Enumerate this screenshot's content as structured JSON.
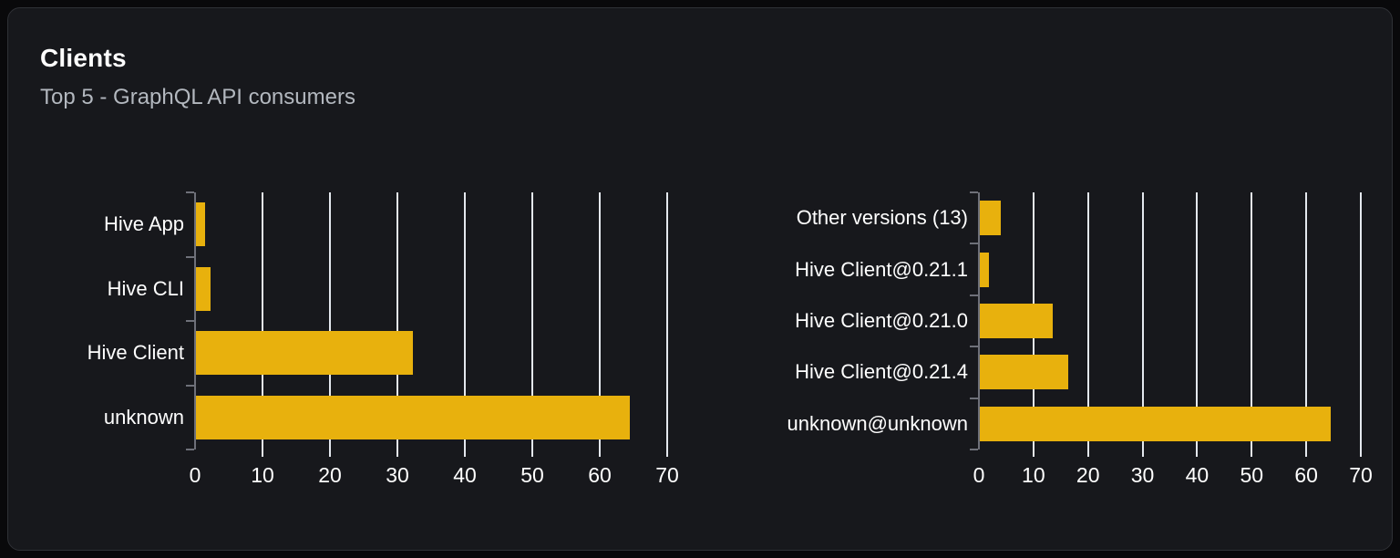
{
  "card": {
    "title": "Clients",
    "subtitle": "Top 5 - GraphQL API consumers"
  },
  "colors": {
    "page_background": "#09090b",
    "card_background": "#17181c",
    "card_border": "#2f3136",
    "bar_fill": "#e8b10d",
    "grid_line": "#e4e8ee",
    "axis_line": "#6e7079",
    "title_text": "#ffffff",
    "subtitle_text": "#b3b8bf",
    "tick_label_text": "#ffffff"
  },
  "chart_data": [
    {
      "type": "bar",
      "orientation": "horizontal",
      "title": "",
      "categories": [
        "Hive App",
        "Hive CLI",
        "Hive Client",
        "unknown"
      ],
      "values": [
        1.4,
        2.1,
        32.1,
        64.3
      ],
      "xlabel": "",
      "ylabel": "",
      "xlim": [
        0,
        70
      ],
      "xticks": [
        0,
        10,
        20,
        30,
        40,
        50,
        60,
        70
      ],
      "grid": true,
      "legend": false
    },
    {
      "type": "bar",
      "orientation": "horizontal",
      "title": "",
      "categories": [
        "Other versions (13)",
        "Hive Client@0.21.1",
        "Hive Client@0.21.0",
        "Hive Client@0.21.4",
        "unknown@unknown"
      ],
      "values": [
        3.8,
        1.7,
        13.4,
        16.2,
        64.3
      ],
      "xlabel": "",
      "ylabel": "",
      "xlim": [
        0,
        70
      ],
      "xticks": [
        0,
        10,
        20,
        30,
        40,
        50,
        60,
        70
      ],
      "grid": true,
      "legend": false
    }
  ]
}
